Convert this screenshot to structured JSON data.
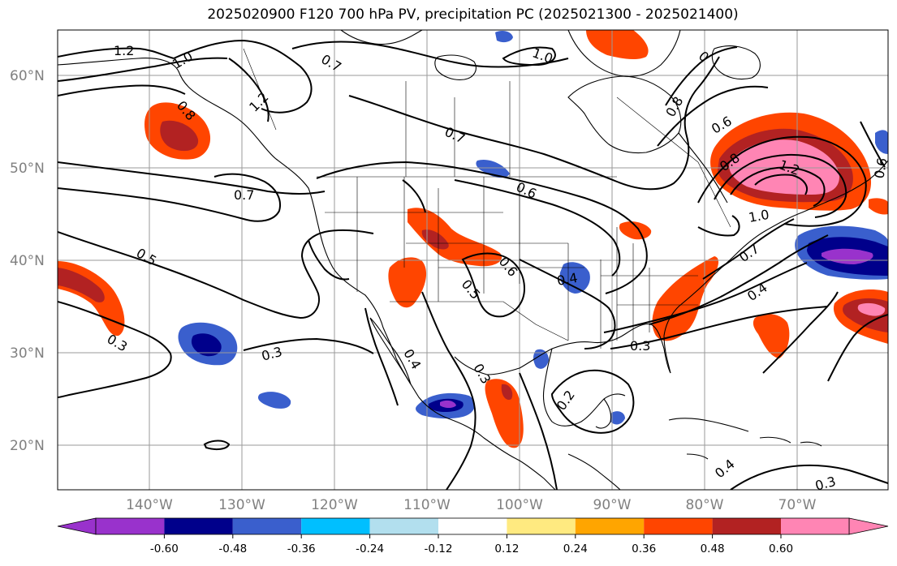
{
  "title": "2025020900 F120 700 hPa PV, precipitation PC (2025021300 - 2025021400)",
  "lat_labels": [
    "60°N",
    "50°N",
    "40°N",
    "30°N",
    "20°N"
  ],
  "lon_labels": [
    "140°W",
    "130°W",
    "120°W",
    "110°W",
    "100°W",
    "90°W",
    "80°W",
    "70°W"
  ],
  "colorbar": {
    "colors": [
      "#9932cc",
      "#00008b",
      "#3a5fcd",
      "#00bfff",
      "#b2dfee",
      "#ffffff",
      "#ffea80",
      "#ffa500",
      "#ff4500",
      "#b22222",
      "#ff85b4"
    ],
    "tick_labels": [
      "-0.60",
      "-0.48",
      "-0.36",
      "-0.24",
      "-0.12",
      "0.12",
      "0.24",
      "0.36",
      "0.48",
      "0.60"
    ]
  },
  "contour_labels": [
    {
      "text": "1.2"
    },
    {
      "text": "1.0"
    },
    {
      "text": "0.7"
    },
    {
      "text": "1.0"
    },
    {
      "text": "0"
    },
    {
      "text": "0.8"
    },
    {
      "text": "1.2"
    },
    {
      "text": "0.8"
    },
    {
      "text": "0.7"
    },
    {
      "text": "0.6"
    },
    {
      "text": "0.8"
    },
    {
      "text": "1.2"
    },
    {
      "text": "1.0"
    },
    {
      "text": "0.6"
    },
    {
      "text": "0.7"
    },
    {
      "text": "0.5"
    },
    {
      "text": "0.6"
    },
    {
      "text": "0.5"
    },
    {
      "text": "0.4"
    },
    {
      "text": "0.7"
    },
    {
      "text": "0.4"
    },
    {
      "text": "0.3"
    },
    {
      "text": "0.3"
    },
    {
      "text": "0.4"
    },
    {
      "text": "0.3"
    },
    {
      "text": "0.2"
    },
    {
      "text": "0.3"
    },
    {
      "text": "0.3"
    },
    {
      "text": "0.4"
    },
    {
      "text": "0.6"
    }
  ]
}
